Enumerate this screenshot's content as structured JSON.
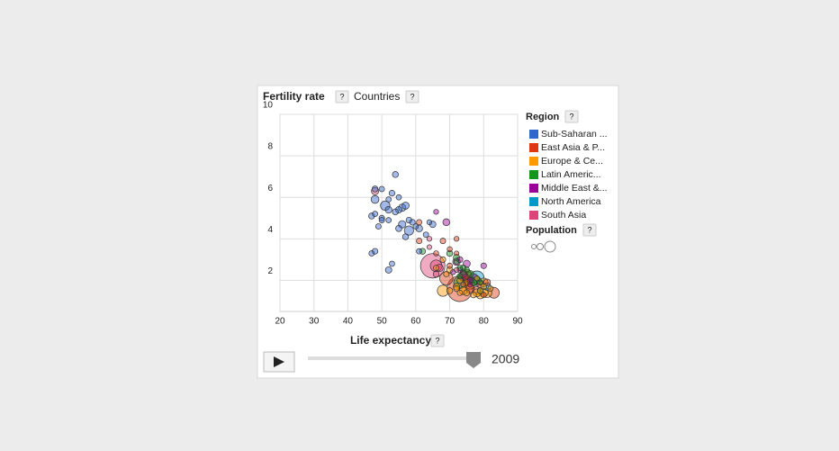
{
  "chart_data": {
    "type": "bubble",
    "title": "Fertility rate",
    "entity_label": "Countries",
    "help_label": "?",
    "x_label": "Life expectancy",
    "legend_title": "Region",
    "size_legend_title": "Population",
    "year": 2009,
    "xlim": [
      20,
      90
    ],
    "xticks": [
      20,
      30,
      40,
      50,
      60,
      70,
      80,
      90
    ],
    "ylim": [
      0.5,
      10
    ],
    "yticks": [
      2,
      4,
      6,
      8,
      10
    ],
    "grid": true,
    "series": [
      {
        "name": "Sub-Saharan ...",
        "color": "#3366cc",
        "x": [
          54,
          48,
          50,
          53,
          52,
          48,
          51,
          52,
          55,
          56,
          57,
          47,
          48,
          50,
          54,
          58,
          59,
          49,
          55,
          56,
          58,
          57,
          61,
          63,
          65,
          60,
          48,
          47,
          53,
          52,
          61,
          55,
          50,
          52,
          64
        ],
        "y": [
          7.1,
          6.4,
          6.4,
          6.2,
          5.9,
          5.9,
          5.6,
          5.4,
          5.4,
          5.5,
          5.6,
          5.1,
          5.2,
          5.0,
          5.3,
          4.9,
          4.8,
          4.6,
          4.5,
          4.7,
          4.4,
          4.1,
          4.5,
          4.2,
          4.7,
          4.6,
          3.4,
          3.3,
          2.8,
          2.5,
          3.4,
          6.0,
          4.9,
          4.9,
          4.8
        ],
        "size": [
          10,
          10,
          5,
          8,
          4,
          40,
          80,
          20,
          15,
          30,
          25,
          10,
          5,
          6,
          10,
          8,
          7,
          5,
          12,
          30,
          75,
          10,
          20,
          5,
          15,
          4,
          8,
          5,
          4,
          15,
          5,
          4,
          5,
          4,
          2
        ]
      },
      {
        "name": "East Asia & P...",
        "color": "#dc3912",
        "x": [
          73,
          61,
          61,
          68,
          70,
          72,
          74,
          75,
          69,
          80,
          83,
          78,
          72,
          66,
          81,
          79,
          76,
          70,
          75
        ],
        "y": [
          1.6,
          3.9,
          4.8,
          3.9,
          3.5,
          3.3,
          1.8,
          2.3,
          2.1,
          1.3,
          1.4,
          1.5,
          4.0,
          3.3,
          1.9,
          1.8,
          1.6,
          2.7,
          2.1
        ],
        "size": [
          1330,
          6,
          5,
          6,
          3,
          1,
          3,
          85,
          240,
          4,
          127,
          48,
          2,
          3,
          21,
          23,
          65,
          5,
          20
        ]
      },
      {
        "name": "Europe & Ce...",
        "color": "#ff9900",
        "x": [
          69,
          68,
          70,
          72,
          73,
          74,
          75,
          76,
          77,
          78,
          79,
          80,
          81,
          80,
          82,
          66,
          68,
          70,
          72,
          78,
          80,
          79,
          75,
          73
        ],
        "y": [
          2.3,
          1.5,
          1.5,
          1.6,
          1.4,
          1.5,
          1.4,
          1.8,
          1.3,
          1.4,
          1.5,
          1.9,
          1.4,
          1.4,
          1.6,
          2.6,
          3.0,
          2.5,
          1.7,
          2.1,
          1.7,
          1.3,
          1.9,
          2.0
        ],
        "size": [
          5,
          140,
          10,
          8,
          5,
          38,
          10,
          70,
          10,
          40,
          8,
          62,
          82,
          60,
          5,
          5,
          6,
          15,
          15,
          2,
          10,
          45,
          7,
          9
        ]
      },
      {
        "name": "Latin Americ...",
        "color": "#109618",
        "x": [
          72,
          73,
          74,
          75,
          76,
          73,
          77,
          79,
          72,
          70,
          74,
          75,
          76,
          78,
          62,
          79,
          73
        ],
        "y": [
          2.9,
          2.6,
          2.4,
          2.2,
          2.0,
          1.9,
          1.9,
          1.9,
          3.1,
          3.3,
          2.6,
          2.5,
          2.3,
          2.0,
          3.4,
          1.5,
          2.2
        ],
        "size": [
          3,
          5,
          9,
          110,
          40,
          195,
          17,
          4,
          14,
          10,
          8,
          6,
          29,
          45,
          10,
          11,
          6
        ]
      },
      {
        "name": "Middle East &...",
        "color": "#990099",
        "x": [
          69,
          66,
          72,
          73,
          74,
          76,
          75,
          77,
          80,
          73,
          74,
          76,
          71
        ],
        "y": [
          4.8,
          5.3,
          2.9,
          2.5,
          2.2,
          2.0,
          2.8,
          2.1,
          2.7,
          3.0,
          2.3,
          1.8,
          2.4
        ],
        "size": [
          23,
          2,
          34,
          6,
          80,
          7,
          25,
          75,
          7,
          9,
          21,
          4,
          3
        ]
      },
      {
        "name": "North America",
        "color": "#0099c6",
        "x": [
          78,
          81
        ],
        "y": [
          2.1,
          1.7
        ],
        "size": [
          307,
          34
        ]
      },
      {
        "name": "South Asia",
        "color": "#dd4477",
        "x": [
          65,
          48,
          64,
          66,
          66,
          74,
          67,
          72,
          64
        ],
        "y": [
          2.7,
          6.3,
          4.0,
          2.7,
          2.3,
          2.3,
          2.6,
          2.5,
          3.6
        ],
        "size": [
          1170,
          29,
          2,
          160,
          9,
          20,
          29,
          1,
          1
        ]
      }
    ]
  }
}
